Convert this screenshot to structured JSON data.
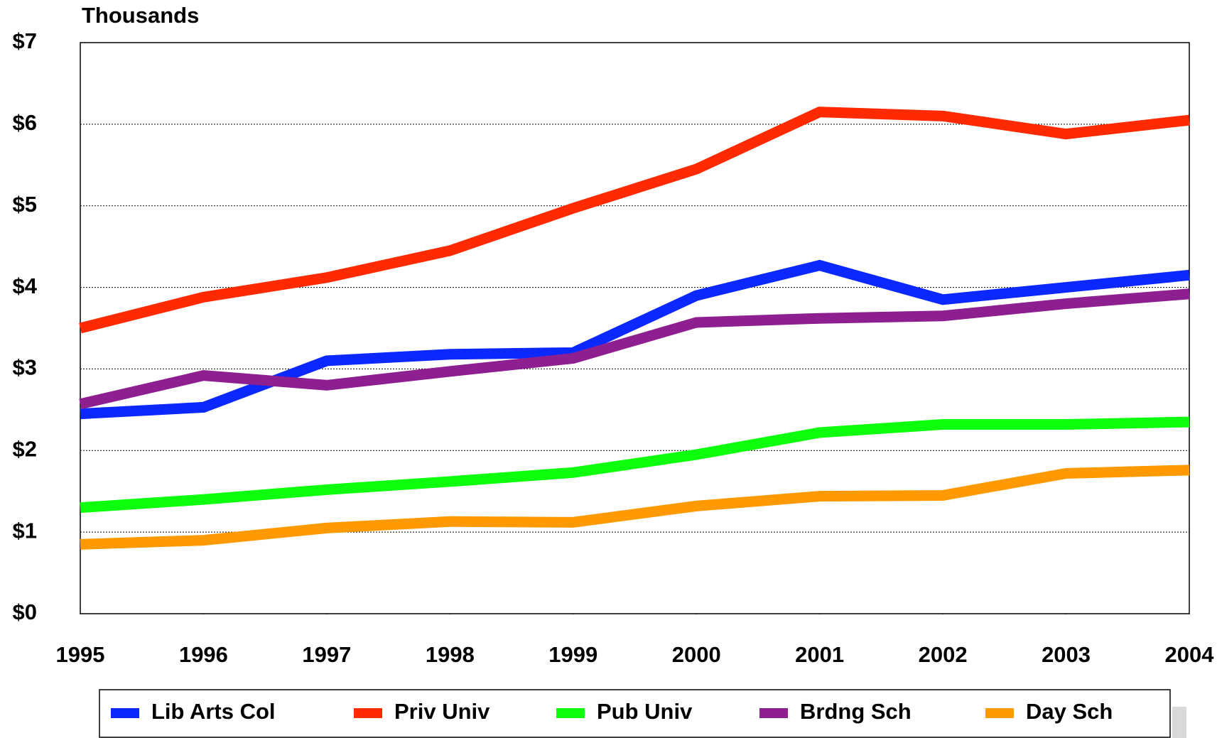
{
  "chart_data": {
    "type": "line",
    "y_label": "Thousands",
    "x": [
      1995,
      1996,
      1997,
      1998,
      1999,
      2000,
      2001,
      2002,
      2003,
      2004
    ],
    "xlim": [
      1995,
      2004
    ],
    "xticks": [
      1995,
      1996,
      1997,
      1998,
      1999,
      2000,
      2001,
      2002,
      2003,
      2004
    ],
    "ylim": [
      0,
      7
    ],
    "yticks": [
      {
        "value": 0,
        "label": "$0"
      },
      {
        "value": 1,
        "label": "$1"
      },
      {
        "value": 2,
        "label": "$2"
      },
      {
        "value": 3,
        "label": "$3"
      },
      {
        "value": 4,
        "label": "$4"
      },
      {
        "value": 5,
        "label": "$5"
      },
      {
        "value": 6,
        "label": "$6"
      },
      {
        "value": 7,
        "label": "$7"
      }
    ],
    "grid": true,
    "legend": "bottom",
    "series": [
      {
        "name": "Lib Arts Col",
        "color": "#0a28ff",
        "values": [
          2.45,
          2.53,
          3.1,
          3.18,
          3.2,
          3.9,
          4.27,
          3.85,
          4.0,
          4.15
        ]
      },
      {
        "name": "Priv Univ",
        "color": "#ff2a00",
        "values": [
          3.5,
          3.88,
          4.12,
          4.45,
          4.97,
          5.45,
          6.15,
          6.1,
          5.88,
          6.05
        ]
      },
      {
        "name": "Pub Univ",
        "color": "#0dff0d",
        "values": [
          1.3,
          1.4,
          1.52,
          1.62,
          1.73,
          1.95,
          2.22,
          2.32,
          2.32,
          2.35
        ]
      },
      {
        "name": "Brdng Sch",
        "color": "#8e1f91",
        "values": [
          2.57,
          2.92,
          2.8,
          2.97,
          3.13,
          3.57,
          3.62,
          3.65,
          3.8,
          3.92
        ]
      },
      {
        "name": "Day Sch",
        "color": "#ff9900",
        "values": [
          0.85,
          0.9,
          1.05,
          1.13,
          1.12,
          1.32,
          1.44,
          1.45,
          1.72,
          1.76
        ]
      }
    ]
  }
}
